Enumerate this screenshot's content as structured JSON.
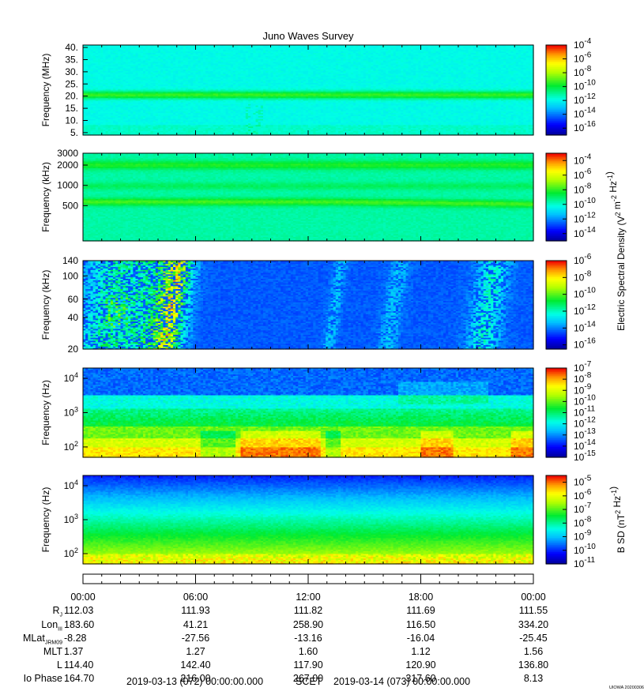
{
  "title": "Juno Waves Survey",
  "watermark": "UIOWA 20200306",
  "panels": [
    {
      "id": "mhz",
      "ylabel": "Frequency (MHz)",
      "yscale": "linear",
      "ylim": [
        4,
        41
      ],
      "yticks": [
        {
          "v": 5,
          "label": "5."
        },
        {
          "v": 10,
          "label": "10."
        },
        {
          "v": 15,
          "label": "15."
        },
        {
          "v": 20,
          "label": "20."
        },
        {
          "v": 25,
          "label": "25."
        },
        {
          "v": 30,
          "label": "30."
        },
        {
          "v": 35,
          "label": "35."
        },
        {
          "v": 40,
          "label": "40."
        }
      ],
      "colorbar": {
        "min_exp": -17,
        "max_exp": -4,
        "labels": [
          -4,
          -6,
          -8,
          -10,
          -12,
          -14,
          -16
        ]
      },
      "style": "mhz"
    },
    {
      "id": "khz_high",
      "ylabel": "Frequency (kHz)",
      "yscale": "log",
      "ylim": [
        150,
        3000
      ],
      "yticks": [
        {
          "v": 500,
          "label": "500"
        },
        {
          "v": 1000,
          "label": "1000"
        },
        {
          "v": 2000,
          "label": "2000"
        },
        {
          "v": 3000,
          "label": "3000"
        }
      ],
      "colorbar": {
        "min_exp": -15,
        "max_exp": -3,
        "labels": [
          -4,
          -6,
          -8,
          -10,
          -12,
          -14
        ]
      },
      "style": "khz_high"
    },
    {
      "id": "khz_low",
      "ylabel": "Frequency (kHz)",
      "yscale": "log",
      "ylim": [
        20,
        140
      ],
      "yticks": [
        {
          "v": 20,
          "label": "20"
        },
        {
          "v": 40,
          "label": "40"
        },
        {
          "v": 60,
          "label": "60"
        },
        {
          "v": 100,
          "label": "100"
        },
        {
          "v": 140,
          "label": "140"
        }
      ],
      "colorbar": {
        "min_exp": -16.5,
        "max_exp": -6,
        "labels": [
          -6,
          -8,
          -10,
          -12,
          -14,
          -16
        ]
      },
      "style": "khz_low"
    },
    {
      "id": "hz_e",
      "ylabel": "Frequency (Hz)",
      "yscale": "log",
      "ylim": [
        50,
        20000
      ],
      "yticks": [
        {
          "v": 100,
          "label": "10^2"
        },
        {
          "v": 1000,
          "label": "10^3"
        },
        {
          "v": 10000,
          "label": "10^4"
        }
      ],
      "colorbar": {
        "min_exp": -15,
        "max_exp": -7,
        "labels": [
          -7,
          -8,
          -9,
          -10,
          -11,
          -12,
          -13,
          -14,
          -15
        ]
      },
      "style": "hz_e"
    },
    {
      "id": "hz_b",
      "ylabel": "Frequency (Hz)",
      "yscale": "log",
      "ylim": [
        50,
        20000
      ],
      "yticks": [
        {
          "v": 100,
          "label": "10^2"
        },
        {
          "v": 1000,
          "label": "10^3"
        },
        {
          "v": 10000,
          "label": "10^4"
        }
      ],
      "colorbar": {
        "min_exp": -11,
        "max_exp": -4.5,
        "labels": [
          -5,
          -6,
          -7,
          -8,
          -9,
          -10,
          -11
        ]
      },
      "style": "hz_b"
    }
  ],
  "colorbar_labels": {
    "electric": "Electric Spectral Density (V^2 m^-2 Hz^-1)",
    "magnetic": "B SD (nT^2 Hz^-1)"
  },
  "chart_data": {
    "type": "heatmap",
    "title": "Juno Waves Survey",
    "x_range": [
      "2019-03-13 00:00",
      "2019-03-14 00:00"
    ],
    "x_ticks": [
      "00:00",
      "06:00",
      "12:00",
      "18:00",
      "00:00"
    ],
    "colormap": "rainbow (blue-cyan-green-yellow-red)",
    "panels": [
      {
        "ylabel": "Frequency (MHz)",
        "ylim": [
          4,
          41
        ],
        "features": [
          {
            "type": "band",
            "freq": 21,
            "level_exp": -11
          }
        ],
        "background_exp": -13
      },
      {
        "ylabel": "Frequency (kHz)",
        "ylim": [
          150,
          3000
        ],
        "features": [
          {
            "type": "band",
            "freq": 2200,
            "level_exp": -11
          },
          {
            "type": "band",
            "freq": 1000,
            "level_exp": -12
          },
          {
            "type": "band",
            "freq": 600,
            "level_exp": -10
          }
        ],
        "background_exp": -12
      },
      {
        "ylabel": "Frequency (kHz)",
        "ylim": [
          20,
          140
        ],
        "features": [
          {
            "type": "bursts",
            "times": [
              "02:00",
              "04:00",
              "05:00",
              "13:00",
              "16:30",
              "21:30"
            ],
            "level_exp": -13
          }
        ],
        "background_exp": -14.5
      },
      {
        "ylabel": "Frequency (Hz)",
        "ylim": [
          50,
          20000
        ],
        "features": [
          {
            "type": "low-frequency intense band",
            "freq_range": [
              60,
              250
            ],
            "level_exp": -8
          }
        ],
        "background_exp": -13
      },
      {
        "ylabel": "Frequency (Hz)",
        "ylim": [
          50,
          20000
        ],
        "features": [
          {
            "type": "gradient",
            "high_freq_exp": -10.5,
            "low_freq_exp": -6.5
          }
        ]
      }
    ]
  },
  "ephemeris": {
    "ticks": [
      "00:00",
      "06:00",
      "12:00",
      "18:00",
      "00:00"
    ],
    "rows": [
      {
        "label": "RJ",
        "values": [
          "112.03",
          "111.93",
          "111.82",
          "111.69",
          "111.55"
        ]
      },
      {
        "label": "LonIII",
        "values": [
          "183.60",
          "41.21",
          "258.90",
          "116.50",
          "334.20"
        ]
      },
      {
        "label": "MLatJRM09",
        "values": [
          "-8.28",
          "-27.56",
          "-13.16",
          "-16.04",
          "-25.45"
        ]
      },
      {
        "label": "MLT",
        "values": [
          "1.37",
          "1.27",
          "1.60",
          "1.12",
          "1.56"
        ]
      },
      {
        "label": "L",
        "values": [
          "114.40",
          "142.40",
          "117.90",
          "120.90",
          "136.80"
        ]
      },
      {
        "label": "Io Phase",
        "values": [
          "164.70",
          "216.00",
          "267.00",
          "317.60",
          "8.13"
        ]
      }
    ],
    "footer": {
      "start": "2019-03-13 (072) 00:00:00.000",
      "label": "SCET",
      "end": "2019-03-14 (073) 00:00:00.000"
    }
  }
}
